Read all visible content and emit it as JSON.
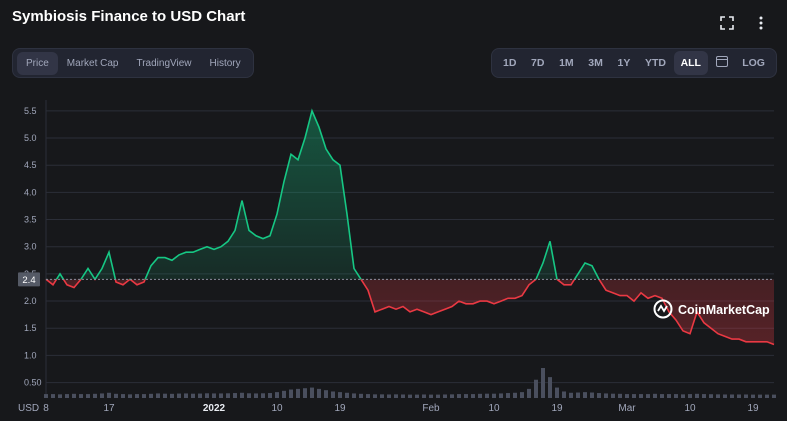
{
  "header": {
    "title": "Symbiosis Finance to USD Chart",
    "expand_icon": "expand-icon",
    "more_icon": "more-icon"
  },
  "tabs_left": [
    {
      "label": "Price",
      "active": true
    },
    {
      "label": "Market Cap",
      "active": false
    },
    {
      "label": "TradingView",
      "active": false
    },
    {
      "label": "History",
      "active": false
    }
  ],
  "tabs_right": [
    {
      "label": "1D",
      "active": false
    },
    {
      "label": "7D",
      "active": false
    },
    {
      "label": "1M",
      "active": false
    },
    {
      "label": "3M",
      "active": false
    },
    {
      "label": "1Y",
      "active": false
    },
    {
      "label": "YTD",
      "active": false
    },
    {
      "label": "ALL",
      "active": true
    },
    {
      "label": "LOG",
      "active": false
    }
  ],
  "calendar_icon": "calendar-icon",
  "watermark": "CoinMarketCap",
  "colors": {
    "up": "#16c784",
    "down": "#ea3943",
    "background": "#17181b",
    "grid": "#2b2e38",
    "axis_text": "#a1a7bb"
  },
  "chart_data": {
    "type": "line",
    "title": "Symbiosis Finance to USD Chart",
    "ylabel": "USD",
    "ylim": [
      0.4,
      5.7
    ],
    "baseline": 2.4,
    "baseline_label": "2.4",
    "yticks": [
      0.5,
      1.0,
      1.5,
      2.0,
      2.5,
      3.0,
      3.5,
      4.0,
      4.5,
      5.0,
      5.5
    ],
    "ytick_labels": [
      "0.50",
      "1.0",
      "1.5",
      "2.0",
      "2.5",
      "3.0",
      "3.5",
      "4.0",
      "4.5",
      "5.0",
      "5.5"
    ],
    "xticks": [
      {
        "x": 0,
        "label": "8"
      },
      {
        "x": 9,
        "label": "17"
      },
      {
        "x": 24,
        "label": "2022"
      },
      {
        "x": 33,
        "label": "10"
      },
      {
        "x": 42,
        "label": "19"
      },
      {
        "x": 55,
        "label": "Feb"
      },
      {
        "x": 64,
        "label": "10"
      },
      {
        "x": 73,
        "label": "19"
      },
      {
        "x": 83,
        "label": "Mar"
      },
      {
        "x": 92,
        "label": "10"
      },
      {
        "x": 101,
        "label": "19"
      }
    ],
    "x": [
      0,
      1,
      2,
      3,
      4,
      5,
      6,
      7,
      8,
      9,
      10,
      11,
      12,
      13,
      14,
      15,
      16,
      17,
      18,
      19,
      20,
      21,
      22,
      23,
      24,
      25,
      26,
      27,
      28,
      29,
      30,
      31,
      32,
      33,
      34,
      35,
      36,
      37,
      38,
      39,
      40,
      41,
      42,
      43,
      44,
      45,
      46,
      47,
      48,
      49,
      50,
      51,
      52,
      53,
      54,
      55,
      56,
      57,
      58,
      59,
      60,
      61,
      62,
      63,
      64,
      65,
      66,
      67,
      68,
      69,
      70,
      71,
      72,
      73,
      74,
      75,
      76,
      77,
      78,
      79,
      80,
      81,
      82,
      83,
      84,
      85,
      86,
      87,
      88,
      89,
      90,
      91,
      92,
      93,
      94,
      95,
      96,
      97,
      98,
      99,
      100,
      101,
      102,
      103,
      104
    ],
    "series": [
      {
        "values": [
          2.4,
          2.3,
          2.5,
          2.3,
          2.25,
          2.4,
          2.6,
          2.4,
          2.6,
          2.9,
          2.35,
          2.3,
          2.4,
          2.3,
          2.35,
          2.65,
          2.8,
          2.8,
          2.75,
          2.85,
          2.9,
          2.9,
          2.95,
          3.0,
          2.95,
          3.0,
          3.1,
          3.3,
          3.85,
          3.3,
          3.2,
          3.15,
          3.2,
          3.6,
          4.2,
          4.7,
          4.6,
          5.0,
          5.5,
          5.2,
          4.8,
          4.6,
          4.5,
          3.6,
          2.6,
          2.4,
          2.2,
          1.8,
          1.85,
          1.9,
          1.85,
          1.9,
          1.8,
          1.85,
          1.8,
          1.75,
          1.8,
          1.85,
          1.9,
          2.0,
          1.95,
          1.95,
          2.0,
          2.0,
          1.95,
          2.0,
          2.05,
          2.05,
          2.1,
          2.3,
          2.4,
          2.7,
          3.1,
          2.4,
          2.3,
          2.3,
          2.5,
          2.7,
          2.65,
          2.4,
          2.2,
          2.15,
          2.1,
          2.1,
          2.0,
          2.15,
          2.05,
          2.1,
          2.05,
          1.8,
          1.65,
          1.45,
          1.4,
          1.8,
          1.6,
          1.5,
          1.4,
          1.35,
          1.3,
          1.3,
          1.25,
          1.25,
          1.25,
          1.25,
          1.2
        ]
      }
    ],
    "volume": [
      0.3,
      0.3,
      0.28,
      0.3,
      0.32,
      0.3,
      0.3,
      0.32,
      0.35,
      0.4,
      0.32,
      0.3,
      0.28,
      0.3,
      0.3,
      0.32,
      0.35,
      0.33,
      0.32,
      0.34,
      0.35,
      0.33,
      0.34,
      0.36,
      0.35,
      0.35,
      0.36,
      0.38,
      0.4,
      0.36,
      0.35,
      0.36,
      0.38,
      0.45,
      0.55,
      0.65,
      0.7,
      0.75,
      0.8,
      0.7,
      0.6,
      0.5,
      0.45,
      0.4,
      0.35,
      0.32,
      0.3,
      0.28,
      0.28,
      0.27,
      0.28,
      0.27,
      0.26,
      0.26,
      0.27,
      0.26,
      0.26,
      0.27,
      0.28,
      0.3,
      0.3,
      0.3,
      0.32,
      0.33,
      0.33,
      0.35,
      0.38,
      0.4,
      0.45,
      0.7,
      1.4,
      2.3,
      1.6,
      0.8,
      0.5,
      0.4,
      0.42,
      0.45,
      0.42,
      0.38,
      0.35,
      0.33,
      0.32,
      0.3,
      0.3,
      0.3,
      0.3,
      0.32,
      0.3,
      0.3,
      0.3,
      0.28,
      0.3,
      0.32,
      0.3,
      0.29,
      0.28,
      0.27,
      0.27,
      0.27,
      0.27,
      0.26,
      0.26,
      0.26,
      0.26
    ]
  }
}
